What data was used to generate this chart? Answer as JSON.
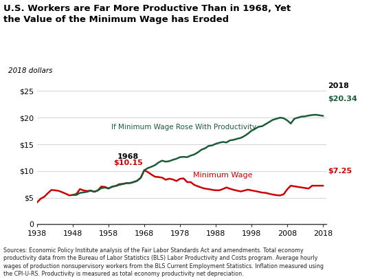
{
  "title": "U.S. Workers are Far More Productive Than in 1968, Yet\nthe Value of the Minimum Wage has Eroded",
  "ylabel": "2018 dollars",
  "xlim": [
    1938,
    2019
  ],
  "ylim": [
    0,
    27
  ],
  "yticks": [
    0,
    5,
    10,
    15,
    20,
    25
  ],
  "xticks": [
    1938,
    1948,
    1958,
    1968,
    1978,
    1988,
    1998,
    2008,
    2018
  ],
  "min_wage_color": "#cc0000",
  "productivity_color": "#1a5c38",
  "source_text": "Sources: Economic Policy Institute analysis of the Fair Labor Standards Act and amendments. Total economy\nproductivity data from the Bureau of Labor Statistics (BLS) Labor Productivity and Costs program. Average hourly\nwages of production nonsupervisory workers from the BLS Current Employment Statistics. Inflation measured using\nthe CPI-U-RS. Productivity is measured as total economy productivity net depreciation.",
  "min_wage_years": [
    1938,
    1939,
    1940,
    1941,
    1942,
    1943,
    1944,
    1945,
    1946,
    1947,
    1948,
    1949,
    1950,
    1951,
    1952,
    1953,
    1954,
    1955,
    1956,
    1957,
    1958,
    1959,
    1960,
    1961,
    1962,
    1963,
    1964,
    1965,
    1966,
    1967,
    1968,
    1969,
    1970,
    1971,
    1972,
    1973,
    1974,
    1975,
    1976,
    1977,
    1978,
    1979,
    1980,
    1981,
    1982,
    1983,
    1984,
    1985,
    1986,
    1987,
    1988,
    1989,
    1990,
    1991,
    1992,
    1993,
    1994,
    1995,
    1996,
    1997,
    1998,
    1999,
    2000,
    2001,
    2002,
    2003,
    2004,
    2005,
    2006,
    2007,
    2008,
    2009,
    2010,
    2011,
    2012,
    2013,
    2014,
    2015,
    2016,
    2017,
    2018
  ],
  "min_wage_values": [
    4.13,
    4.81,
    5.17,
    5.84,
    6.45,
    6.39,
    6.29,
    6.04,
    5.75,
    5.44,
    5.51,
    5.7,
    6.61,
    6.37,
    6.25,
    6.33,
    6.11,
    6.37,
    7.1,
    7.02,
    6.73,
    7.07,
    7.2,
    7.54,
    7.6,
    7.73,
    7.75,
    7.93,
    8.17,
    8.73,
    10.15,
    9.8,
    9.34,
    8.93,
    8.87,
    8.76,
    8.37,
    8.56,
    8.42,
    8.13,
    8.54,
    8.62,
    7.93,
    7.92,
    7.4,
    7.13,
    6.89,
    6.7,
    6.61,
    6.48,
    6.39,
    6.39,
    6.62,
    6.92,
    6.68,
    6.48,
    6.32,
    6.17,
    6.34,
    6.51,
    6.37,
    6.25,
    6.11,
    5.96,
    5.9,
    5.73,
    5.59,
    5.48,
    5.42,
    5.64,
    6.55,
    7.25,
    7.14,
    7.02,
    6.92,
    6.82,
    6.72,
    7.25,
    7.25,
    7.25,
    7.25
  ],
  "prod_years": [
    1948,
    1949,
    1950,
    1951,
    1952,
    1953,
    1954,
    1955,
    1956,
    1957,
    1958,
    1959,
    1960,
    1961,
    1962,
    1963,
    1964,
    1965,
    1966,
    1967,
    1968,
    1969,
    1970,
    1971,
    1972,
    1973,
    1974,
    1975,
    1976,
    1977,
    1978,
    1979,
    1980,
    1981,
    1982,
    1983,
    1984,
    1985,
    1986,
    1987,
    1988,
    1989,
    1990,
    1991,
    1992,
    1993,
    1994,
    1995,
    1996,
    1997,
    1998,
    1999,
    2000,
    2001,
    2002,
    2003,
    2004,
    2005,
    2006,
    2007,
    2008,
    2009,
    2010,
    2011,
    2012,
    2013,
    2014,
    2015,
    2016,
    2017,
    2018
  ],
  "prod_values": [
    5.51,
    5.52,
    5.9,
    6.0,
    6.1,
    6.33,
    6.11,
    6.37,
    6.8,
    6.9,
    6.73,
    7.07,
    7.2,
    7.4,
    7.55,
    7.73,
    7.75,
    7.93,
    8.17,
    8.73,
    10.15,
    10.55,
    10.8,
    11.1,
    11.6,
    11.95,
    11.75,
    11.85,
    12.1,
    12.3,
    12.6,
    12.65,
    12.6,
    12.9,
    13.1,
    13.5,
    14.0,
    14.25,
    14.7,
    14.8,
    15.1,
    15.3,
    15.45,
    15.35,
    15.75,
    15.85,
    16.05,
    16.2,
    16.55,
    17.0,
    17.55,
    17.9,
    18.3,
    18.4,
    18.8,
    19.2,
    19.6,
    19.8,
    20.0,
    19.9,
    19.5,
    18.9,
    19.8,
    20.0,
    20.2,
    20.25,
    20.4,
    20.5,
    20.55,
    20.45,
    20.34
  ]
}
